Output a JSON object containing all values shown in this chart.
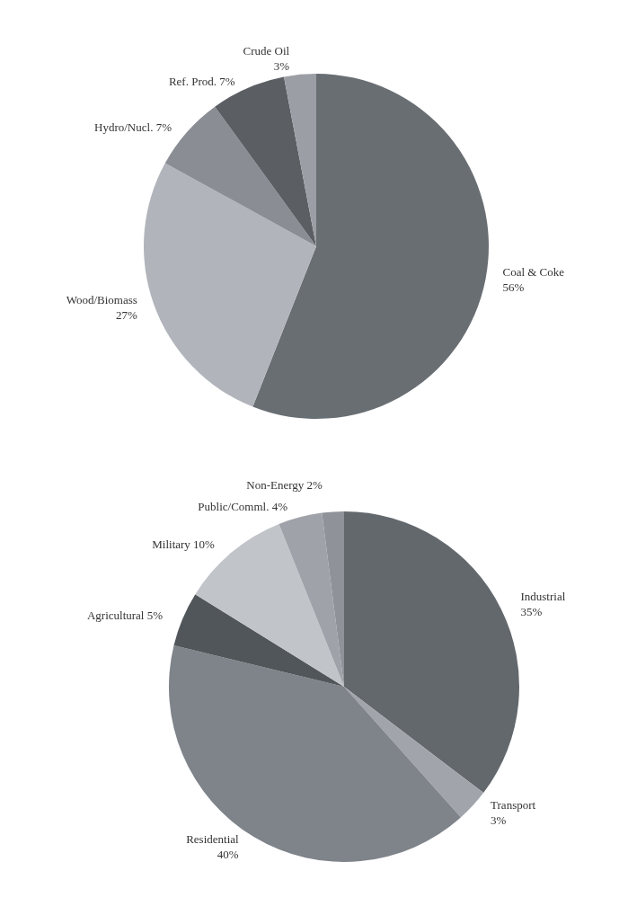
{
  "chart_data": [
    {
      "type": "pie",
      "categories": [
        "Coal & Coke",
        "Wood/Biomass",
        "Hydro/Nucl.",
        "Ref. Prod.",
        "Crude Oil"
      ],
      "values": [
        56,
        27,
        7,
        7,
        3
      ],
      "value_labels": [
        "56%",
        "27%",
        "7%",
        "7%",
        "3%"
      ],
      "colors": [
        "#696e73",
        "#b1b5bb",
        "#8a8e94",
        "#5b5f64",
        "#9b9fa5"
      ]
    },
    {
      "type": "pie",
      "categories": [
        "Industrial",
        "Transport",
        "Residential",
        "Agricultural",
        "Military",
        "Public/Comml.",
        "Non-Energy"
      ],
      "values": [
        35,
        3,
        40,
        5,
        10,
        4,
        2
      ],
      "value_labels": [
        "35%",
        "3%",
        "40%",
        "5%",
        "10%",
        "4%",
        "2%"
      ],
      "colors": [
        "#63686d",
        "#a1a5ab",
        "#7f848a",
        "#51565b",
        "#c1c4c9",
        "#9fa3a9",
        "#8f9399"
      ]
    }
  ]
}
